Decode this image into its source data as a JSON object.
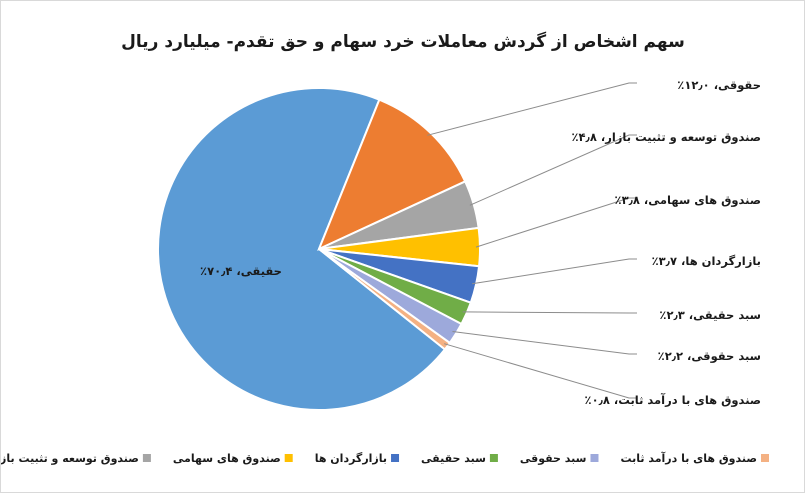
{
  "chart_data": {
    "type": "pie",
    "title": "سهم اشخاص از گردش معاملات خرد سهام و حق تقدم- میلیارد ریال",
    "slices": [
      {
        "name": "حقیقی",
        "value": 70.4,
        "label": "حقیقی، ۷۰٫۴٪",
        "color": "#5B9BD5"
      },
      {
        "name": "حقوقی",
        "value": 12.0,
        "label": "حقوقی، ۱۲٫۰٪",
        "color": "#ED7D31"
      },
      {
        "name": "صندوق توسعه و تثبیت بازار",
        "value": 4.8,
        "label": "صندوق توسعه و تثبیت بازار، ۴٫۸٪",
        "color": "#A5A5A5"
      },
      {
        "name": "صندوق های سهامی",
        "value": 3.8,
        "label": "صندوق های سهامی، ۳٫۸٪",
        "color": "#FFC000"
      },
      {
        "name": "بازارگردان ها",
        "value": 3.7,
        "label": "بازارگردان ها، ۳٫۷٪",
        "color": "#4472C4"
      },
      {
        "name": "سبد حقیقی",
        "value": 2.3,
        "label": "سبد حقیقی، ۲٫۳٪",
        "color": "#70AD47"
      },
      {
        "name": "سبد حقوقی",
        "value": 2.2,
        "label": "سبد حقوقی، ۲٫۲٪",
        "color": "#9DA9DB"
      },
      {
        "name": "صندوق های با درآمد ثابت",
        "value": 0.8,
        "label": "صندوق های با درآمد ثابت، ۰٫۸٪",
        "color": "#F4B183"
      }
    ],
    "legend_position": "bottom"
  }
}
